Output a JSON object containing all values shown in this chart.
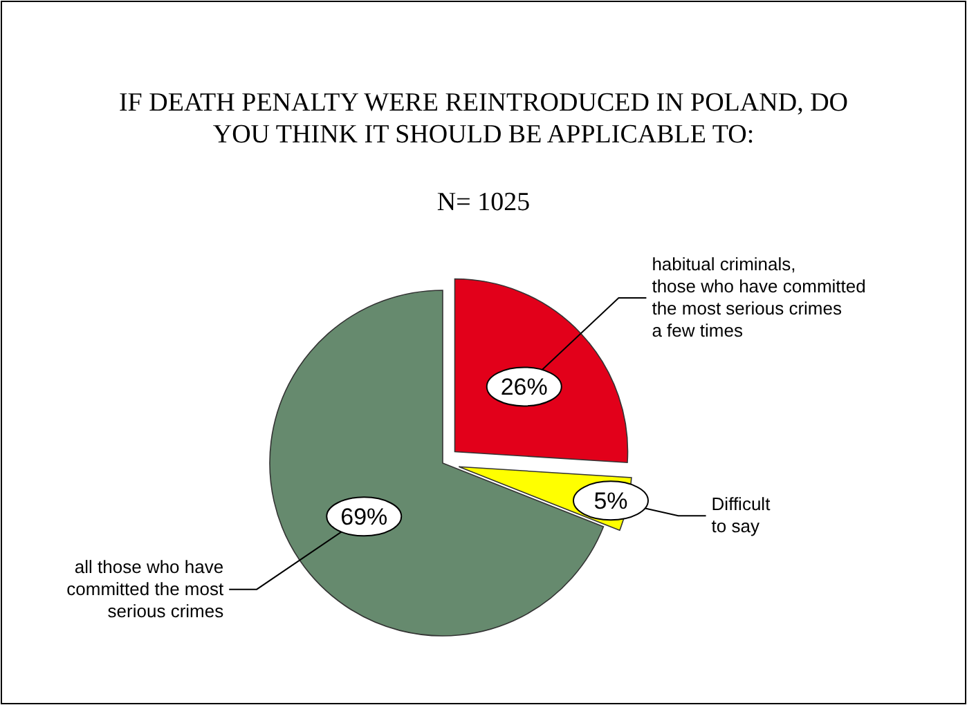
{
  "chart_data": {
    "type": "pie",
    "title": "IF DEATH PENALTY WERE REINTRODUCED IN POLAND, DO YOU THINK IT SHOULD BE APPLICABLE TO:",
    "subtitle": "N= 1025",
    "categories": [
      "habitual criminals, those who have committed the most serious crimes a few times",
      "Difficult to say",
      "all those who have committed the most serious crimes"
    ],
    "values": [
      26,
      5,
      69
    ],
    "colors": [
      "#e2001a",
      "#ffff00",
      "#668a6e"
    ],
    "value_labels": [
      "26%",
      "5%",
      "69%"
    ]
  }
}
